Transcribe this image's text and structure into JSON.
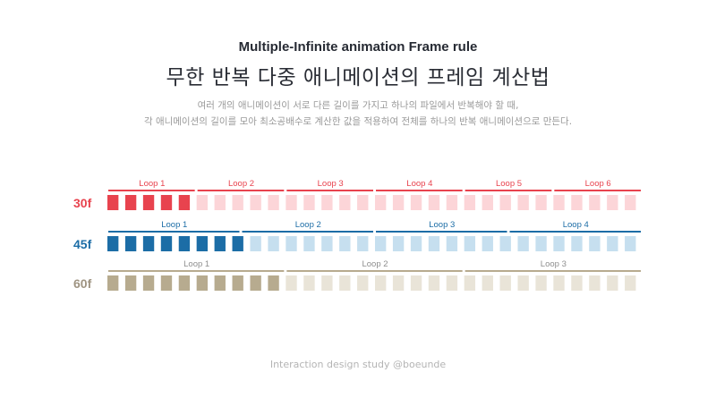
{
  "header": {
    "subtitle": "Multiple-Infinite animation Frame rule",
    "title": "무한 반복 다중 애니메이션의 프레임 계산법",
    "description_line1": "여러 개의 애니메이션이 서로 다른 길이를 가지고 하나의 파일에서 반복해야 할 때,",
    "description_line2": "각 애니메이션의 길이를 모아 최소공배수로 계산한 값을 적용하여 전체를 하나의 반복 애니메이션으로 만든다."
  },
  "timeline": {
    "total_frames": 180,
    "rows": [
      {
        "label": "30f",
        "frames_per_loop": 30,
        "loops": [
          "Loop 1",
          "Loop 2",
          "Loop 3",
          "Loop 4",
          "Loop 5",
          "Loop 6"
        ],
        "color": "#e8434e",
        "faded_color": "#fcd5d8"
      },
      {
        "label": "45f",
        "frames_per_loop": 45,
        "loops": [
          "Loop 1",
          "Loop 2",
          "Loop 3",
          "Loop 4"
        ],
        "color": "#1c6da6",
        "faded_color": "#c6dfef"
      },
      {
        "label": "60f",
        "frames_per_loop": 60,
        "loops": [
          "Loop 1",
          "Loop 2",
          "Loop 3"
        ],
        "color": "#b7ab8f",
        "faded_color": "#e9e4d8",
        "label_color": "#9f9482",
        "loop_label_color": "#8e8e8e"
      }
    ]
  },
  "footer": {
    "credit": "Interaction design study @boeunde"
  }
}
